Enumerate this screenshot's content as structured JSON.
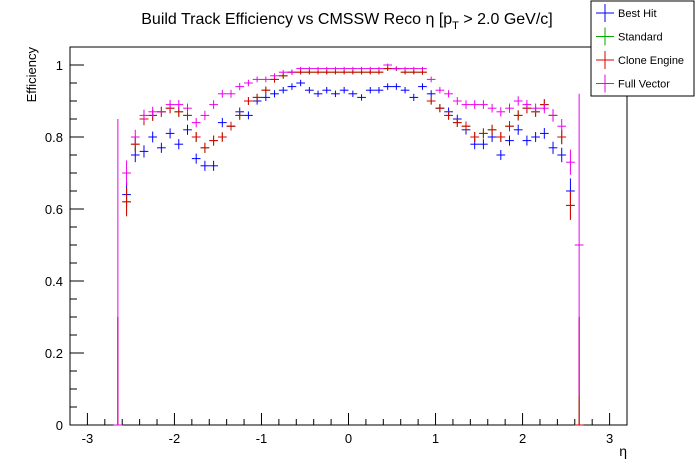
{
  "chart_data": {
    "type": "scatter",
    "title_main": "Build Track Efficiency vs CMSSW Reco η [p",
    "title_sub": "T",
    "title_tail": " > 2.0 GeV/c]",
    "xlabel": "η",
    "ylabel": "Efficiency",
    "xlim": [
      -3.2,
      3.2
    ],
    "ylim": [
      0,
      1.05
    ],
    "x_ticks": [
      -3,
      -2,
      -1,
      0,
      1,
      2,
      3
    ],
    "x_tick_labels": [
      "-3",
      "-2",
      "-1",
      "0",
      "1",
      "2",
      "3"
    ],
    "y_ticks": [
      0,
      0.2,
      0.4,
      0.6,
      0.8,
      1
    ],
    "y_tick_labels": [
      "0",
      "0.2",
      "0.4",
      "0.6",
      "0.8",
      "1"
    ],
    "legend_position": "top-right",
    "bin_half_width": 0.05,
    "x": [
      -2.65,
      -2.55,
      -2.45,
      -2.35,
      -2.25,
      -2.15,
      -2.05,
      -1.95,
      -1.85,
      -1.75,
      -1.65,
      -1.55,
      -1.45,
      -1.35,
      -1.25,
      -1.15,
      -1.05,
      -0.95,
      -0.85,
      -0.75,
      -0.65,
      -0.55,
      -0.45,
      -0.35,
      -0.25,
      -0.15,
      -0.05,
      0.05,
      0.15,
      0.25,
      0.35,
      0.45,
      0.55,
      0.65,
      0.75,
      0.85,
      0.95,
      1.05,
      1.15,
      1.25,
      1.35,
      1.45,
      1.55,
      1.65,
      1.75,
      1.85,
      1.95,
      2.05,
      2.15,
      2.25,
      2.35,
      2.45,
      2.55,
      2.65
    ],
    "series": [
      {
        "name": "Best Hit",
        "color": "#0000ff",
        "y": [
          0.0,
          0.64,
          0.75,
          0.76,
          0.8,
          0.77,
          0.81,
          0.78,
          0.82,
          0.74,
          0.72,
          0.72,
          0.84,
          0.83,
          0.87,
          0.86,
          0.9,
          0.91,
          0.92,
          0.93,
          0.94,
          0.95,
          0.93,
          0.92,
          0.93,
          0.92,
          0.93,
          0.92,
          0.91,
          0.93,
          0.93,
          0.94,
          0.94,
          0.93,
          0.91,
          0.94,
          0.92,
          0.88,
          0.87,
          0.85,
          0.82,
          0.78,
          0.78,
          0.8,
          0.75,
          0.79,
          0.82,
          0.79,
          0.8,
          0.81,
          0.77,
          0.75,
          0.65,
          0.0
        ],
        "err": [
          0.3,
          0.035,
          0.02,
          0.017,
          0.015,
          0.014,
          0.014,
          0.014,
          0.014,
          0.014,
          0.014,
          0.014,
          0.013,
          0.012,
          0.012,
          0.011,
          0.01,
          0.01,
          0.01,
          0.009,
          0.009,
          0.009,
          0.009,
          0.009,
          0.009,
          0.009,
          0.009,
          0.009,
          0.009,
          0.009,
          0.009,
          0.009,
          0.009,
          0.009,
          0.01,
          0.009,
          0.01,
          0.011,
          0.012,
          0.012,
          0.013,
          0.014,
          0.014,
          0.014,
          0.014,
          0.014,
          0.014,
          0.014,
          0.014,
          0.015,
          0.017,
          0.02,
          0.035,
          0.3
        ]
      },
      {
        "name": "Standard",
        "color": "#00aa00",
        "y": [
          0.0,
          0.62,
          0.78,
          0.85,
          0.86,
          0.87,
          0.88,
          0.87,
          0.86,
          0.8,
          0.77,
          0.79,
          0.8,
          0.83,
          0.86,
          0.9,
          0.91,
          0.93,
          0.96,
          0.97,
          0.98,
          0.98,
          0.98,
          0.98,
          0.98,
          0.98,
          0.98,
          0.98,
          0.98,
          0.98,
          0.98,
          0.99,
          0.99,
          0.98,
          0.98,
          0.98,
          0.9,
          0.88,
          0.86,
          0.84,
          0.83,
          0.8,
          0.81,
          0.82,
          0.8,
          0.83,
          0.86,
          0.88,
          0.87,
          0.89,
          0.86,
          0.8,
          0.61,
          0.0
        ],
        "err": [
          0.3,
          0.04,
          0.02,
          0.017,
          0.015,
          0.014,
          0.014,
          0.014,
          0.014,
          0.014,
          0.014,
          0.014,
          0.013,
          0.012,
          0.012,
          0.011,
          0.01,
          0.01,
          0.009,
          0.008,
          0.007,
          0.006,
          0.006,
          0.006,
          0.006,
          0.006,
          0.006,
          0.006,
          0.006,
          0.006,
          0.006,
          0.006,
          0.006,
          0.006,
          0.006,
          0.007,
          0.01,
          0.011,
          0.012,
          0.012,
          0.013,
          0.014,
          0.014,
          0.014,
          0.014,
          0.014,
          0.014,
          0.014,
          0.014,
          0.015,
          0.017,
          0.02,
          0.04,
          0.3
        ]
      },
      {
        "name": "Clone Engine",
        "color": "#dd0000",
        "y": [
          0.0,
          0.62,
          0.78,
          0.85,
          0.86,
          0.87,
          0.88,
          0.87,
          0.86,
          0.8,
          0.77,
          0.79,
          0.8,
          0.83,
          0.86,
          0.9,
          0.91,
          0.93,
          0.96,
          0.97,
          0.98,
          0.98,
          0.98,
          0.98,
          0.98,
          0.98,
          0.98,
          0.98,
          0.98,
          0.98,
          0.98,
          0.99,
          0.99,
          0.98,
          0.98,
          0.98,
          0.9,
          0.88,
          0.86,
          0.84,
          0.83,
          0.8,
          0.81,
          0.82,
          0.8,
          0.83,
          0.86,
          0.88,
          0.87,
          0.89,
          0.86,
          0.8,
          0.61,
          0.0
        ],
        "err": [
          0.3,
          0.04,
          0.02,
          0.017,
          0.015,
          0.014,
          0.014,
          0.014,
          0.014,
          0.014,
          0.014,
          0.014,
          0.013,
          0.012,
          0.012,
          0.011,
          0.01,
          0.01,
          0.009,
          0.008,
          0.007,
          0.006,
          0.006,
          0.006,
          0.006,
          0.006,
          0.006,
          0.006,
          0.006,
          0.006,
          0.006,
          0.006,
          0.006,
          0.006,
          0.006,
          0.007,
          0.01,
          0.011,
          0.012,
          0.012,
          0.013,
          0.014,
          0.014,
          0.014,
          0.014,
          0.014,
          0.014,
          0.014,
          0.014,
          0.015,
          0.017,
          0.02,
          0.04,
          0.3
        ]
      },
      {
        "name": "Full Vector",
        "color": "#ee00ee",
        "y": [
          0.0,
          0.7,
          0.8,
          0.86,
          0.87,
          0.87,
          0.89,
          0.89,
          0.88,
          0.84,
          0.86,
          0.89,
          0.92,
          0.92,
          0.94,
          0.95,
          0.96,
          0.96,
          0.97,
          0.98,
          0.98,
          0.99,
          0.99,
          0.99,
          0.99,
          0.99,
          0.99,
          0.99,
          0.99,
          0.99,
          0.99,
          1.0,
          0.99,
          0.99,
          0.99,
          0.99,
          0.96,
          0.93,
          0.92,
          0.9,
          0.89,
          0.89,
          0.89,
          0.88,
          0.87,
          0.88,
          0.9,
          0.89,
          0.88,
          0.88,
          0.86,
          0.83,
          0.73,
          0.5
        ],
        "err": [
          0.85,
          0.035,
          0.02,
          0.016,
          0.014,
          0.013,
          0.013,
          0.013,
          0.013,
          0.013,
          0.013,
          0.012,
          0.011,
          0.011,
          0.01,
          0.009,
          0.008,
          0.008,
          0.007,
          0.006,
          0.006,
          0.005,
          0.005,
          0.005,
          0.005,
          0.005,
          0.005,
          0.005,
          0.005,
          0.005,
          0.005,
          0.004,
          0.005,
          0.005,
          0.005,
          0.005,
          0.008,
          0.009,
          0.01,
          0.011,
          0.012,
          0.012,
          0.012,
          0.012,
          0.013,
          0.013,
          0.013,
          0.013,
          0.013,
          0.014,
          0.016,
          0.02,
          0.035,
          0.42
        ]
      }
    ]
  }
}
